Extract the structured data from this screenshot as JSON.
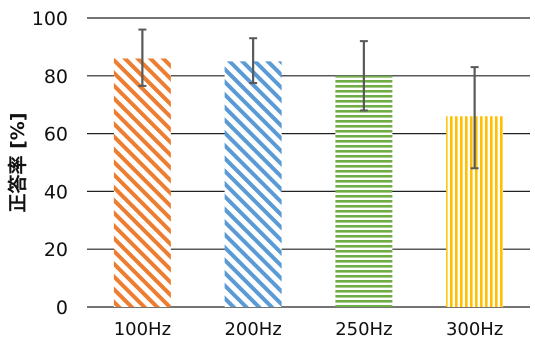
{
  "chart_data": {
    "type": "bar",
    "categories": [
      "100Hz",
      "200Hz",
      "250Hz",
      "300Hz"
    ],
    "values": [
      86,
      85,
      80,
      66
    ],
    "error_low": [
      76.5,
      77.5,
      68,
      48
    ],
    "error_high": [
      96,
      93,
      92,
      83
    ],
    "ylabel": "正答率 [%]",
    "xlabel": "",
    "ylim": [
      0,
      100
    ],
    "yticks": [
      0,
      20,
      40,
      60,
      80,
      100
    ],
    "grid": "horizontal",
    "bar_patterns": [
      "diagonal-hatch",
      "diagonal-hatch",
      "horizontal-stripes",
      "vertical-stripes"
    ],
    "bar_colors": [
      "#ED7D31",
      "#5B9BD5",
      "#70AD47",
      "#FFC000"
    ],
    "error_bar_color": "#595959"
  }
}
